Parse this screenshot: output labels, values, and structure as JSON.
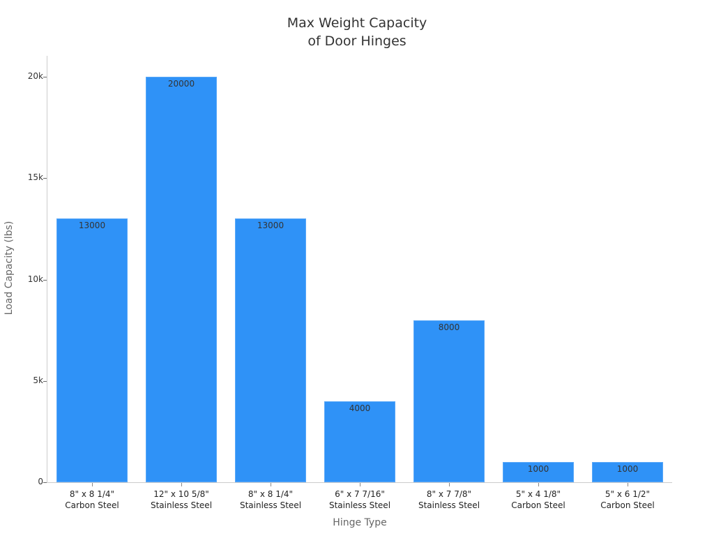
{
  "chart_data": {
    "type": "bar",
    "title": "Max Weight Capacity\nof Door Hinges",
    "title_lines": [
      "Max Weight Capacity",
      "of Door Hinges"
    ],
    "xlabel": "Hinge Type",
    "ylabel": "Load Capacity (lbs)",
    "categories": [
      "8\" x 8 1/4\" Carbon Steel",
      "12\" x 10 5/8\" Stainless Steel",
      "8\" x 8 1/4\" Stainless Steel",
      "6\" x 7 7/16\" Stainless Steel",
      "8\" x 7 7/8\" Stainless Steel",
      "5\" x 4 1/8\" Carbon Steel",
      "5\" x 6 1/2\" Carbon Steel"
    ],
    "category_lines": [
      [
        "8\" x 8 1/4\"",
        "Carbon Steel"
      ],
      [
        "12\" x 10 5/8\"",
        "Stainless Steel"
      ],
      [
        "8\" x 8 1/4\"",
        "Stainless Steel"
      ],
      [
        "6\" x 7 7/16\"",
        "Stainless Steel"
      ],
      [
        "8\" x 7 7/8\"",
        "Stainless Steel"
      ],
      [
        "5\" x 4 1/8\"",
        "Carbon Steel"
      ],
      [
        "5\" x 6 1/2\"",
        "Carbon Steel"
      ]
    ],
    "values": [
      13000,
      20000,
      13000,
      4000,
      8000,
      1000,
      1000
    ],
    "data_labels": [
      "13000",
      "20000",
      "13000",
      "4000",
      "8000",
      "1000",
      "1000"
    ],
    "ylim": [
      0,
      21000
    ],
    "yticks": [
      0,
      5000,
      10000,
      15000,
      20000
    ],
    "ytick_labels": [
      "0",
      "5k",
      "10k",
      "15k",
      "20k"
    ],
    "grid": false,
    "legend": null,
    "bar_color": "#2f92f7"
  }
}
